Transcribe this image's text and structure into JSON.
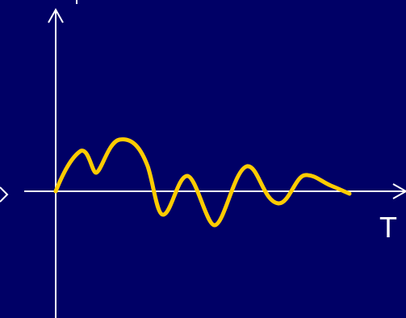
{
  "diagram": {
    "x_axis_label": "T",
    "colors": {
      "background": "#000066",
      "axes": "#ffffff",
      "signal": "#ffcc00"
    }
  }
}
